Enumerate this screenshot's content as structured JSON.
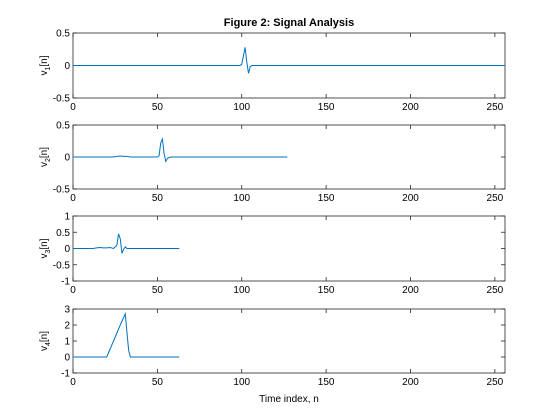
{
  "figure": {
    "title": "Figure 2: Signal Analysis",
    "xlabel": "Time index, n",
    "line_color": "#0072BD",
    "frame_color": "#262626"
  },
  "chart_data": [
    {
      "type": "line",
      "title": "Figure 2: Signal Analysis",
      "ylabel": "v1[n]",
      "ylabel_base": "v",
      "ylabel_sub": "1",
      "ylabel_suffix": "[n]",
      "xlim": [
        0,
        256
      ],
      "ylim": [
        -0.5,
        0.5
      ],
      "xticks": [
        0,
        50,
        100,
        150,
        200,
        250
      ],
      "yticks": [
        -0.5,
        0,
        0.5
      ],
      "yticklabels": [
        "-0.5",
        "0",
        "0.5"
      ],
      "grid": false,
      "series": [
        {
          "x": [
            0,
            99,
            100,
            101,
            102,
            103,
            104,
            105,
            106,
            256
          ],
          "y": [
            0,
            0,
            0.02,
            0.15,
            0.28,
            0.05,
            -0.12,
            -0.02,
            0,
            0
          ]
        }
      ]
    },
    {
      "type": "line",
      "ylabel": "v2[n]",
      "ylabel_base": "v",
      "ylabel_sub": "2",
      "ylabel_suffix": "[n]",
      "xlim": [
        0,
        256
      ],
      "ylim": [
        -0.5,
        0.5
      ],
      "xticks": [
        0,
        50,
        100,
        150,
        200,
        250
      ],
      "yticks": [
        -0.5,
        0,
        0.5
      ],
      "yticklabels": [
        "-0.5",
        "0",
        "0.5"
      ],
      "grid": false,
      "series": [
        {
          "x": [
            0,
            24,
            26,
            28,
            30,
            32,
            34,
            50,
            51,
            52,
            53,
            54,
            55,
            56,
            57,
            58,
            127
          ],
          "y": [
            0,
            0,
            0.01,
            0.015,
            0.01,
            0.01,
            0,
            0,
            0.02,
            0.22,
            0.28,
            0.05,
            -0.07,
            -0.02,
            -0.01,
            0,
            0
          ]
        }
      ]
    },
    {
      "type": "line",
      "ylabel": "v3[n]",
      "ylabel_base": "v",
      "ylabel_sub": "3",
      "ylabel_suffix": "[n]",
      "xlim": [
        0,
        256
      ],
      "ylim": [
        -1,
        1
      ],
      "xticks": [
        0,
        50,
        100,
        150,
        200,
        250
      ],
      "yticks": [
        -1,
        -0.5,
        0,
        0.5,
        1
      ],
      "yticklabels": [
        "-1",
        "-0.5",
        "0",
        "0.5",
        "1"
      ],
      "grid": false,
      "series": [
        {
          "x": [
            0,
            12,
            14,
            16,
            18,
            20,
            22,
            24,
            26,
            27,
            28,
            29,
            30,
            31,
            32,
            63
          ],
          "y": [
            0,
            0,
            0.02,
            0.03,
            0.02,
            0.02,
            0.03,
            0,
            0.1,
            0.45,
            0.3,
            -0.15,
            -0.02,
            0.05,
            0,
            0
          ]
        }
      ]
    },
    {
      "type": "line",
      "ylabel": "v4[n]",
      "ylabel_base": "v",
      "ylabel_sub": "4",
      "ylabel_suffix": "[n]",
      "xlabel": "Time index, n",
      "xlim": [
        0,
        256
      ],
      "ylim": [
        -1,
        3
      ],
      "xticks": [
        0,
        50,
        100,
        150,
        200,
        250
      ],
      "yticks": [
        -1,
        0,
        1,
        2,
        3
      ],
      "yticklabels": [
        "-1",
        "0",
        "1",
        "2",
        "3"
      ],
      "grid": false,
      "series": [
        {
          "x": [
            0,
            20,
            24,
            28,
            31,
            32,
            33,
            34,
            63
          ],
          "y": [
            0,
            0,
            1,
            2,
            2.7,
            1.5,
            0.4,
            0,
            0
          ]
        }
      ]
    }
  ]
}
